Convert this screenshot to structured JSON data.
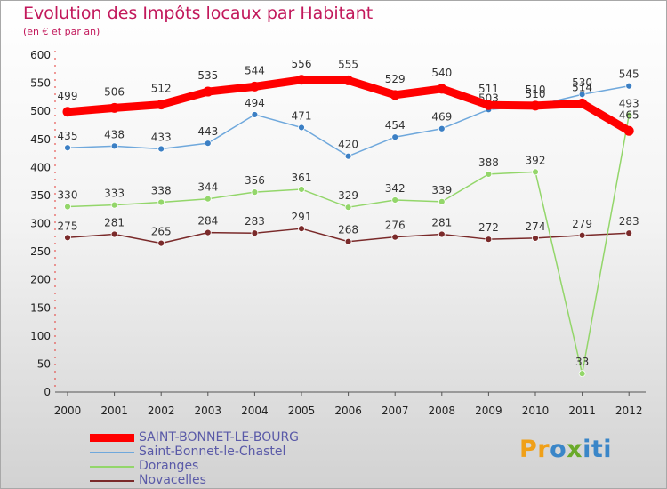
{
  "title": "Evolution des Impôts locaux par Habitant",
  "subtitle": "(en € et par an)",
  "logo": {
    "p": "Pr",
    "o": "o",
    "x": "x",
    "iti": "iti"
  },
  "colors": {
    "accent": "#c2185b",
    "axis": "#e53935",
    "series": [
      "#ff0000",
      "#6fa8dc",
      "#93d66a",
      "#7a2a2a"
    ],
    "markers": [
      "#ff0000",
      "#3b7fc4",
      "#93d66a",
      "#7a2a2a"
    ]
  },
  "chart_data": {
    "type": "line",
    "title": "Evolution des Impôts locaux par Habitant",
    "subtitle": "(en € et par an)",
    "xlabel": "",
    "ylabel": "",
    "ylim": [
      0,
      600
    ],
    "ytick_step": 50,
    "grid": false,
    "legend_position": "bottom-left",
    "categories": [
      "2000",
      "2001",
      "2002",
      "2003",
      "2004",
      "2005",
      "2006",
      "2007",
      "2008",
      "2009",
      "2010",
      "2011",
      "2012"
    ],
    "series": [
      {
        "name": "SAINT-BONNET-LE-BOURG",
        "values": [
          499,
          506,
          512,
          535,
          544,
          556,
          555,
          529,
          540,
          511,
          510,
          514,
          465
        ]
      },
      {
        "name": "Saint-Bonnet-le-Chastel",
        "values": [
          435,
          438,
          433,
          443,
          494,
          471,
          420,
          454,
          469,
          503,
          510,
          530,
          545
        ]
      },
      {
        "name": "Doranges",
        "values": [
          330,
          333,
          338,
          344,
          356,
          361,
          329,
          342,
          339,
          388,
          392,
          33,
          493
        ]
      },
      {
        "name": "Novacelles",
        "values": [
          275,
          281,
          265,
          284,
          283,
          291,
          268,
          276,
          281,
          272,
          274,
          279,
          283
        ]
      }
    ]
  }
}
